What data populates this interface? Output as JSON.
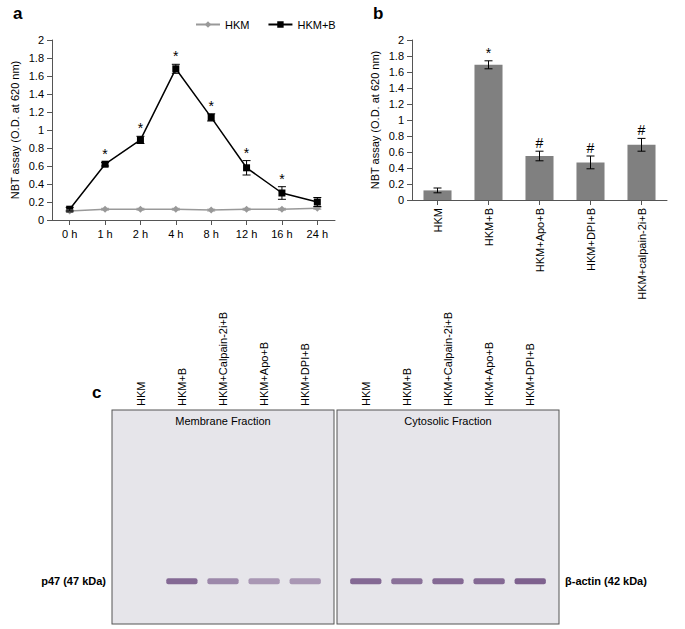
{
  "chart_data": [
    {
      "type": "line",
      "title": "a",
      "categories": [
        "0 h",
        "1 h",
        "2 h",
        "4 h",
        "8 h",
        "12 h",
        "16 h",
        "24 h"
      ],
      "ylabel": "NBT assay (O.D. at 620 nm)",
      "ylim": [
        0,
        2
      ],
      "yticks": [
        0,
        0.2,
        0.4,
        0.6,
        0.8,
        1,
        1.2,
        1.4,
        1.6,
        1.8,
        2
      ],
      "grid": false,
      "legend": "top",
      "series": [
        {
          "name": "HKM",
          "color": "#999999",
          "marker": "diamond",
          "values": [
            0.1,
            0.12,
            0.12,
            0.12,
            0.11,
            0.12,
            0.12,
            0.13
          ],
          "errors": [
            0.01,
            0.01,
            0.01,
            0.01,
            0.01,
            0.01,
            0.01,
            0.01
          ]
        },
        {
          "name": "HKM+B",
          "color": "#000000",
          "marker": "square",
          "values": [
            0.12,
            0.62,
            0.89,
            1.68,
            1.14,
            0.58,
            0.3,
            0.2
          ],
          "errors": [
            0.02,
            0.02,
            0.04,
            0.05,
            0.04,
            0.08,
            0.07,
            0.05
          ],
          "annotations": [
            null,
            "*",
            "*",
            "*",
            "*",
            "*",
            "*",
            null
          ]
        }
      ]
    },
    {
      "type": "bar",
      "title": "b",
      "categories": [
        "HKM",
        "HKM+B",
        "HKM+Apo+B",
        "HKM+DPI+B",
        "HKM+calpain-2i+B"
      ],
      "ylabel": "NBT assay (O.D. at 620 nm)",
      "ylim": [
        0,
        2
      ],
      "yticks": [
        0,
        0.2,
        0.4,
        0.6,
        0.8,
        1,
        1.2,
        1.4,
        1.6,
        1.8,
        2
      ],
      "grid": false,
      "color": "#808080",
      "values": [
        0.12,
        1.69,
        0.55,
        0.47,
        0.69
      ],
      "errors": [
        0.03,
        0.05,
        0.06,
        0.08,
        0.08
      ],
      "annotations": [
        null,
        "*",
        "#",
        "#",
        "#"
      ]
    }
  ],
  "blot": {
    "title": "c",
    "panels": [
      {
        "title": "Membrane Fraction",
        "lanes": [
          "HKM",
          "HKM+B",
          "HKM+Calpain-2i+B",
          "HKM+Apo+B",
          "HKM+DPI+B"
        ],
        "band": {
          "label": "p47 (47 kDa)",
          "intensities": [
            0,
            0.8,
            0.6,
            0.5,
            0.5
          ]
        }
      },
      {
        "title": "Cytosolic Fraction",
        "lanes": [
          "HKM",
          "HKM+B",
          "HKM+Calpain-2i+B",
          "HKM+Apo+B",
          "HKM+DPI+B"
        ],
        "band": {
          "label": "β-actin (42 kDa)",
          "intensities": [
            0.8,
            0.75,
            0.8,
            0.8,
            0.85
          ]
        }
      }
    ]
  }
}
